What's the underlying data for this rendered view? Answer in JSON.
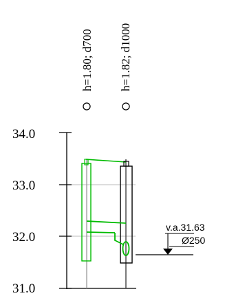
{
  "manholes": [
    {
      "label": "h=1.80; d700",
      "marker": "circle-marker-icon"
    },
    {
      "label": "h=1.82; d1000",
      "marker": "circle-marker-icon"
    }
  ],
  "axis": {
    "ticks": [
      "34.0",
      "33.0",
      "32.0",
      "31.0"
    ]
  },
  "pipe_annotation": {
    "level_label": "v.a.31.63",
    "diameter_label": "Ø250",
    "marker": "water-level-triangle-icon"
  },
  "colors": {
    "structure_green": "#00bb00",
    "structure_black": "#000000",
    "grid_gray": "#bbbbbb"
  }
}
